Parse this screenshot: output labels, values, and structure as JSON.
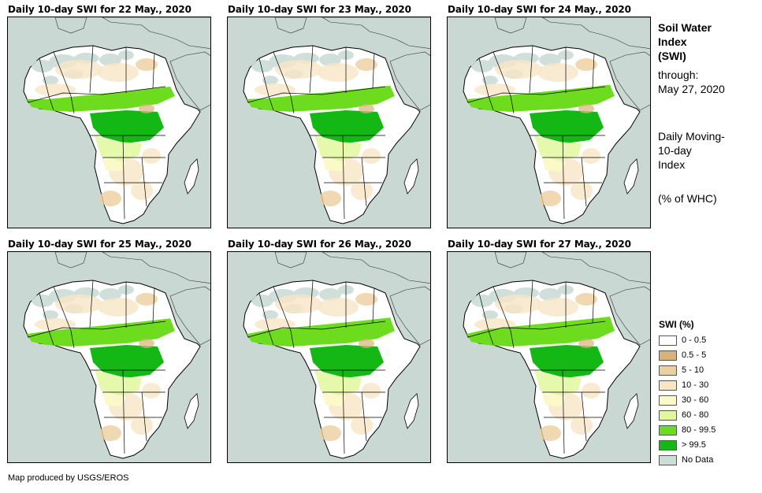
{
  "panels": [
    {
      "title": "Daily 10-day SWI for 22 May., 2020"
    },
    {
      "title": "Daily 10-day SWI for 23 May., 2020"
    },
    {
      "title": "Daily 10-day SWI for 24 May., 2020"
    },
    {
      "title": "Daily 10-day SWI for 25 May., 2020"
    },
    {
      "title": "Daily 10-day SWI for 26 May., 2020"
    },
    {
      "title": "Daily 10-day SWI for 27 May., 2020"
    }
  ],
  "sidebar": {
    "title_line1": "Soil Water",
    "title_line2": "Index",
    "title_line3": "(SWI)",
    "through_label": "through:",
    "through_date": "May 27, 2020",
    "desc_line1": "Daily Moving-",
    "desc_line2": "10-day",
    "desc_line3": "Index",
    "units": "(% of WHC)"
  },
  "legend": {
    "title": "SWI (%)",
    "items": [
      {
        "label": "0 - 0.5",
        "color": "#ffffff"
      },
      {
        "label": "0.5 - 5",
        "color": "#d8b27a"
      },
      {
        "label": "5 - 10",
        "color": "#eccf9f"
      },
      {
        "label": "10 - 30",
        "color": "#f7e6c6"
      },
      {
        "label": "30 - 60",
        "color": "#fbf9c8"
      },
      {
        "label": "60 - 80",
        "color": "#e0f79c"
      },
      {
        "label": "80 - 99.5",
        "color": "#6edc1e"
      },
      {
        "label": "> 99.5",
        "color": "#14b814"
      },
      {
        "label": "No Data",
        "color": "#ccdcd6"
      }
    ]
  },
  "footer": {
    "credit": "Map produced by USGS/EROS"
  }
}
